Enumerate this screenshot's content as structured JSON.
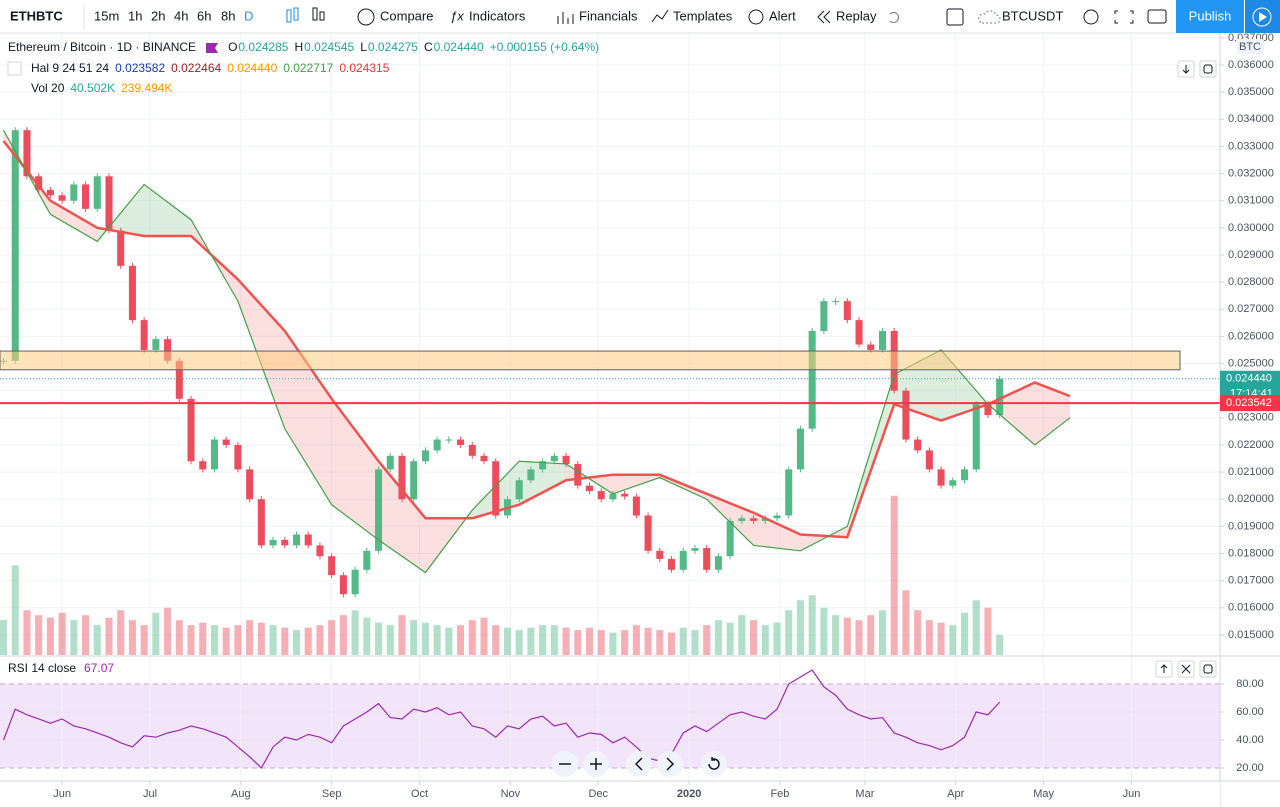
{
  "toolbar": {
    "symbol": "ETHBTC",
    "intervals": [
      "15m",
      "1h",
      "2h",
      "4h",
      "6h",
      "8h",
      "D"
    ],
    "compare": "Compare",
    "indicators": "Indicators",
    "financials": "Financials",
    "templates": "Templates",
    "alert": "Alert",
    "replay": "Replay",
    "layout": "BTCUSDT",
    "publish": "Publish"
  },
  "legend": {
    "title": "Ethereum / Bitcoin · 1D · BINANCE",
    "ohlc": [
      {
        "text": "O",
        "color": "#131722"
      },
      {
        "text": "0.024285",
        "color": "#26a69a"
      },
      {
        "text": "H",
        "color": "#131722"
      },
      {
        "text": "0.024545",
        "color": "#26a69a"
      },
      {
        "text": "L",
        "color": "#131722"
      },
      {
        "text": "0.024275",
        "color": "#26a69a"
      },
      {
        "text": "C",
        "color": "#131722"
      },
      {
        "text": "0.024440",
        "color": "#26a69a"
      },
      {
        "text": "+0.000155 (+0.64%)",
        "color": "#26a69a"
      }
    ],
    "ichimoku": [
      {
        "text": "Hal 9 24 51 24",
        "color": "#131722"
      },
      {
        "text": "0.023582",
        "color": "#1a3ea8"
      },
      {
        "text": "0.022464",
        "color": "#9b1c1c"
      },
      {
        "text": "0.024440",
        "color": "#ff9800"
      },
      {
        "text": "0.022717",
        "color": "#43a047"
      },
      {
        "text": "0.024315",
        "color": "#e53935"
      }
    ],
    "volume": [
      {
        "text": "Vol 20",
        "color": "#131722"
      },
      {
        "text": "40.502K",
        "color": "#26a69a"
      },
      {
        "text": "239.494K",
        "color": "#ff9800"
      }
    ],
    "rsi": [
      {
        "text": "RSI 14 close",
        "color": "#131722"
      },
      {
        "text": "67.07",
        "color": "#9c27b0"
      }
    ]
  },
  "chart_data": {
    "type": "candlestick",
    "currency": "BTC",
    "xlim": [
      -21.2,
      395.2
    ],
    "xticks": [
      {
        "value": 0,
        "label": "Jun"
      },
      {
        "value": 30,
        "label": "Jul"
      },
      {
        "value": 61,
        "label": "Aug"
      },
      {
        "value": 92,
        "label": "Sep"
      },
      {
        "value": 122,
        "label": "Oct"
      },
      {
        "value": 153,
        "label": "Nov"
      },
      {
        "value": 183,
        "label": "Dec"
      },
      {
        "value": 214,
        "label": "2020"
      },
      {
        "value": 245,
        "label": "Feb"
      },
      {
        "value": 274,
        "label": "Mar"
      },
      {
        "value": 305,
        "label": "Apr"
      },
      {
        "value": 335,
        "label": "May"
      },
      {
        "value": 365,
        "label": "Jun"
      }
    ],
    "ylim": [
      0.01426,
      0.03718
    ],
    "yticks": [
      {
        "value": 0.015,
        "label": "0.015000"
      },
      {
        "value": 0.016,
        "label": "0.016000"
      },
      {
        "value": 0.017,
        "label": "0.017000"
      },
      {
        "value": 0.018,
        "label": "0.018000"
      },
      {
        "value": 0.019,
        "label": "0.019000"
      },
      {
        "value": 0.02,
        "label": "0.020000"
      },
      {
        "value": 0.021,
        "label": "0.021000"
      },
      {
        "value": 0.022,
        "label": "0.022000"
      },
      {
        "value": 0.023,
        "label": "0.023000"
      },
      {
        "value": 0.024,
        "label": "0.024000"
      },
      {
        "value": 0.025,
        "label": "0.025000"
      },
      {
        "value": 0.026,
        "label": "0.026000"
      },
      {
        "value": 0.027,
        "label": "0.027000"
      },
      {
        "value": 0.028,
        "label": "0.028000"
      },
      {
        "value": 0.029,
        "label": "0.029000"
      },
      {
        "value": 0.03,
        "label": "0.030000"
      },
      {
        "value": 0.031,
        "label": "0.031000"
      },
      {
        "value": 0.032,
        "label": "0.032000"
      },
      {
        "value": 0.033,
        "label": "0.033000"
      },
      {
        "value": 0.034,
        "label": "0.034000"
      },
      {
        "value": 0.035,
        "label": "0.035000"
      },
      {
        "value": 0.036,
        "label": "0.036000"
      },
      {
        "value": 0.037,
        "label": "0.037000"
      }
    ],
    "grid": true,
    "up_color": "#53b987",
    "down_color": "#eb4d5c",
    "x": [
      -20,
      -16,
      -12,
      -8,
      -4,
      0,
      4,
      8,
      12,
      16,
      20,
      24,
      28,
      32,
      36,
      40,
      44,
      48,
      52,
      56,
      60,
      64,
      68,
      72,
      76,
      80,
      84,
      88,
      92,
      96,
      100,
      104,
      108,
      112,
      116,
      120,
      124,
      128,
      132,
      136,
      140,
      144,
      148,
      152,
      156,
      160,
      164,
      168,
      172,
      176,
      180,
      184,
      188,
      192,
      196,
      200,
      204,
      208,
      212,
      216,
      220,
      224,
      228,
      232,
      236,
      240,
      244,
      248,
      252,
      256,
      260,
      264,
      268,
      272,
      276,
      280,
      284,
      288,
      292,
      296,
      300,
      304,
      308,
      312,
      316,
      320
    ],
    "close": [
      0.0251,
      0.0336,
      0.0319,
      0.0314,
      0.0312,
      0.031,
      0.0316,
      0.0307,
      0.0319,
      0.0299,
      0.0286,
      0.0266,
      0.0255,
      0.0259,
      0.0251,
      0.0237,
      0.0214,
      0.0211,
      0.0222,
      0.022,
      0.0211,
      0.02,
      0.0183,
      0.0185,
      0.0183,
      0.0187,
      0.0183,
      0.0179,
      0.0172,
      0.0165,
      0.0174,
      0.0181,
      0.0211,
      0.0216,
      0.02,
      0.0214,
      0.0218,
      0.0222,
      0.0222,
      0.022,
      0.0216,
      0.0214,
      0.0194,
      0.02,
      0.0207,
      0.0211,
      0.0214,
      0.0216,
      0.0213,
      0.0205,
      0.0203,
      0.02,
      0.0202,
      0.0201,
      0.0194,
      0.0181,
      0.0178,
      0.0174,
      0.0181,
      0.0182,
      0.0174,
      0.0179,
      0.0192,
      0.0193,
      0.0192,
      0.0193,
      0.0194,
      0.0211,
      0.0226,
      0.0262,
      0.0273,
      0.0273,
      0.0266,
      0.0257,
      0.0255,
      0.0262,
      0.024,
      0.0222,
      0.0218,
      0.0211,
      0.0205,
      0.0207,
      0.0211,
      0.0235,
      0.0231,
      0.02444
    ],
    "volume_ylim": [
      0,
      1250
    ],
    "volume": [
      70,
      180,
      90,
      80,
      75,
      85,
      70,
      80,
      60,
      75,
      90,
      70,
      60,
      85,
      95,
      70,
      60,
      65,
      60,
      55,
      60,
      70,
      65,
      60,
      55,
      50,
      55,
      60,
      70,
      80,
      90,
      75,
      65,
      60,
      80,
      70,
      65,
      60,
      55,
      60,
      70,
      75,
      60,
      55,
      50,
      55,
      60,
      60,
      55,
      50,
      55,
      50,
      45,
      50,
      60,
      55,
      50,
      45,
      55,
      50,
      60,
      70,
      65,
      80,
      70,
      60,
      65,
      90,
      110,
      120,
      95,
      80,
      75,
      70,
      80,
      90,
      320,
      130,
      90,
      70,
      65,
      60,
      85,
      110,
      95,
      40.502
    ],
    "cloud_x": [
      -20,
      -4,
      12,
      28,
      44,
      60,
      76,
      92,
      108,
      124,
      140,
      156,
      172,
      188,
      204,
      220,
      236,
      252,
      268,
      284,
      300,
      316,
      332,
      344
    ],
    "span_a": {
      "color": "#43a047",
      "values": [
        0.0336,
        0.0305,
        0.0295,
        0.0316,
        0.0303,
        0.0273,
        0.0226,
        0.0198,
        0.0185,
        0.0173,
        0.0196,
        0.0214,
        0.0213,
        0.0202,
        0.0208,
        0.02,
        0.0183,
        0.0181,
        0.019,
        0.0246,
        0.0255,
        0.0235,
        0.022,
        0.023
      ]
    },
    "span_b": {
      "color": "#ef5350",
      "values": [
        0.0332,
        0.031,
        0.03,
        0.0297,
        0.0297,
        0.0281,
        0.0262,
        0.0237,
        0.0214,
        0.0193,
        0.0193,
        0.0198,
        0.0207,
        0.0209,
        0.0209,
        0.0202,
        0.0195,
        0.0187,
        0.0186,
        0.0235,
        0.0229,
        0.0235,
        0.0243,
        0.0238
      ]
    },
    "zone": [
      0.02477,
      0.02546
    ],
    "hline": {
      "value": 0.023542,
      "label": "0.023542",
      "color": "#f23645"
    },
    "last_price": {
      "value": 0.02444,
      "label": "0.024440",
      "color": "#26a69a"
    },
    "countdown": "17:14:41",
    "rsi_ylim": [
      11.4,
      99.3
    ],
    "rsi_yticks": [
      {
        "value": 20,
        "label": "20.00"
      },
      {
        "value": 40,
        "label": "40.00"
      },
      {
        "value": 60,
        "label": "60.00"
      },
      {
        "value": 80,
        "label": "80.00"
      }
    ],
    "rsi_color": "#9c27b0",
    "rsi": [
      40,
      62,
      58,
      55,
      52,
      55,
      50,
      48,
      45,
      42,
      38,
      35,
      43,
      42,
      45,
      47,
      50,
      48,
      45,
      42,
      35,
      28,
      20,
      35,
      42,
      40,
      44,
      42,
      38,
      50,
      55,
      60,
      66,
      56,
      55,
      62,
      60,
      63,
      58,
      60,
      50,
      48,
      42,
      50,
      48,
      55,
      57,
      50,
      52,
      42,
      45,
      44,
      38,
      42,
      35,
      27,
      25,
      30,
      45,
      50,
      46,
      52,
      58,
      60,
      57,
      55,
      62,
      80,
      85,
      90,
      78,
      72,
      62,
      58,
      55,
      56,
      45,
      42,
      38,
      36,
      33,
      36,
      42,
      60,
      58,
      67.07
    ]
  }
}
